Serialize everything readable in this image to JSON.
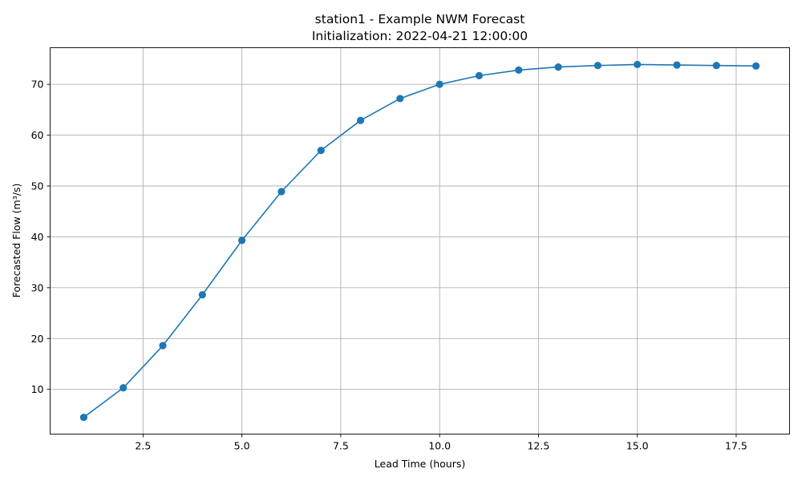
{
  "chart_data": {
    "type": "line",
    "title": "station1 - Example NWM Forecast",
    "subtitle": "Initialization: 2022-04-21 12:00:00",
    "xlabel": "Lead Time (hours)",
    "ylabel": "Forecasted Flow (m³/s)",
    "xlim": [
      0.15,
      18.85
    ],
    "ylim": [
      1.2,
      77.2
    ],
    "grid": true,
    "x_ticks": [
      2.5,
      5.0,
      7.5,
      10.0,
      12.5,
      15.0,
      17.5
    ],
    "x_tick_labels": [
      "2.5",
      "5.0",
      "7.5",
      "10.0",
      "12.5",
      "15.0",
      "17.5"
    ],
    "y_ticks": [
      10,
      20,
      30,
      40,
      50,
      60,
      70
    ],
    "y_tick_labels": [
      "10",
      "20",
      "30",
      "40",
      "50",
      "60",
      "70"
    ],
    "series": [
      {
        "color": "#1f77b4",
        "marker": "circle",
        "x": [
          1,
          2,
          3,
          4,
          5,
          6,
          7,
          8,
          9,
          10,
          11,
          12,
          13,
          14,
          15,
          16,
          17,
          18
        ],
        "values": [
          4.5,
          10.3,
          18.6,
          28.6,
          39.3,
          48.9,
          57.0,
          62.9,
          67.2,
          70.0,
          71.7,
          72.8,
          73.4,
          73.7,
          73.9,
          73.8,
          73.7,
          73.6
        ]
      }
    ]
  }
}
